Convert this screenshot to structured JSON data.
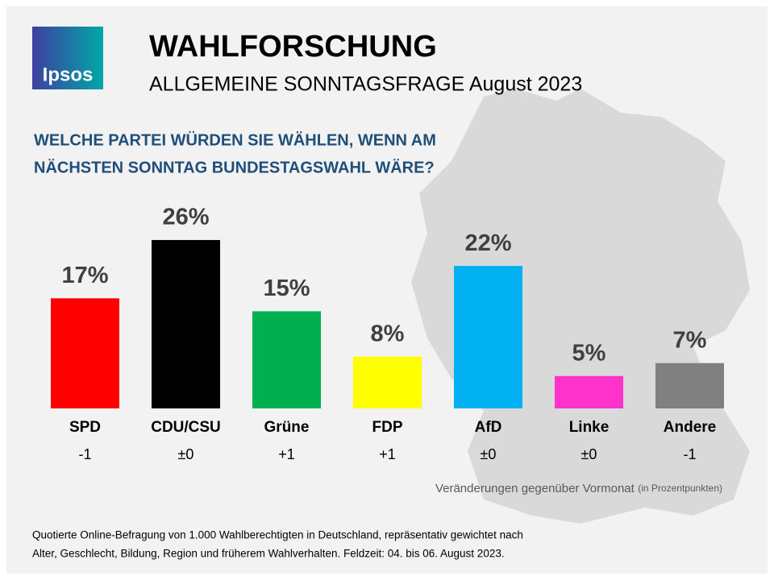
{
  "logo": {
    "text": "Ipsos"
  },
  "chart_data": {
    "type": "bar",
    "title": "WAHLFORSCHUNG",
    "subtitle": "ALLGEMEINE SONNTAGSFRAGE August 2023",
    "question": [
      "WELCHE PARTEI WÜRDEN SIE WÄHLEN, WENN AM",
      "NÄCHSTEN SONNTAG BUNDESTAGSWAHL WÄRE?"
    ],
    "categories": [
      "SPD",
      "CDU/CSU",
      "Grüne",
      "FDP",
      "AfD",
      "Linke",
      "Andere"
    ],
    "values": [
      17,
      26,
      15,
      8,
      22,
      5,
      7
    ],
    "value_labels": [
      "17%",
      "26%",
      "15%",
      "8%",
      "22%",
      "5%",
      "7%"
    ],
    "colors": [
      "#ff0000",
      "#000000",
      "#00b050",
      "#ffff00",
      "#00b0f0",
      "#ff33cc",
      "#808080"
    ],
    "changes": [
      "-1",
      "±0",
      "+1",
      "+1",
      "±0",
      "±0",
      "-1"
    ],
    "changes_note": "Veränderungen gegenüber Vormonat",
    "changes_unit": "(in Prozentpunkten)",
    "footnote": [
      "Quotierte Online-Befragung  von 1.000 Wahlberechtigten  in Deutschland,  repräsentativ gewichtet nach",
      "Alter, Geschlecht, Bildung, Region und früherem Wahlverhalten.  Feldzeit: 04. bis 06. August 2023."
    ]
  }
}
